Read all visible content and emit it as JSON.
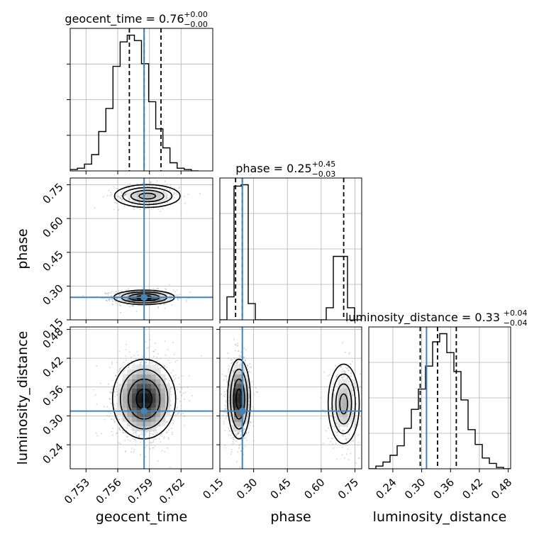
{
  "chart_data": {
    "type": "corner",
    "parameters": [
      "geocent_time",
      "phase",
      "luminosity_distance"
    ],
    "truths": {
      "geocent_time": 0.7585,
      "phase": 0.25,
      "luminosity_distance": 0.31
    },
    "axes": {
      "geocent_time": {
        "range": [
          0.7515,
          0.765
        ],
        "ticks": [
          0.753,
          0.756,
          0.759,
          0.762
        ],
        "tick_labels": [
          "0.753",
          "0.756",
          "0.759",
          "0.762"
        ]
      },
      "phase": {
        "range": [
          0.15,
          0.78
        ],
        "ticks": [
          0.15,
          0.3,
          0.45,
          0.6,
          0.75
        ],
        "tick_labels": [
          "0.15",
          "0.30",
          "0.45",
          "0.60",
          "0.75"
        ]
      },
      "luminosity_distance": {
        "range": [
          0.19,
          0.485
        ],
        "ticks": [
          0.24,
          0.3,
          0.36,
          0.42,
          0.48
        ],
        "tick_labels": [
          "0.24",
          "0.30",
          "0.36",
          "0.42",
          "0.48"
        ]
      }
    },
    "titles": [
      {
        "param": "geocent_time",
        "text": "geocent_time = 0.76",
        "sup": "+0.00",
        "sub": "−0.00"
      },
      {
        "param": "phase",
        "text": "phase = 0.25",
        "sup": "+0.45",
        "sub": "−0.03"
      },
      {
        "param": "luminosity_distance",
        "text": "luminosity_distance = 0.33",
        "sup": "+0.04",
        "sub": "−0.04"
      }
    ],
    "quantiles": {
      "geocent_time": [
        0.7571,
        0.7585,
        0.7601
      ],
      "phase": [
        0.22,
        0.25,
        0.7
      ],
      "luminosity_distance": [
        0.297,
        0.333,
        0.372
      ]
    },
    "histograms": {
      "geocent_time": {
        "edges": [
          0.7515,
          0.75218,
          0.75285,
          0.75353,
          0.7542,
          0.75488,
          0.75555,
          0.75623,
          0.7569,
          0.75758,
          0.75825,
          0.75893,
          0.7596,
          0.76028,
          0.76095,
          0.76163,
          0.7623,
          0.76298,
          0.76365
        ],
        "counts": [
          0.01,
          0.02,
          0.05,
          0.12,
          0.29,
          0.46,
          0.77,
          0.95,
          1.0,
          0.96,
          0.79,
          0.51,
          0.31,
          0.17,
          0.06,
          0.02,
          0.01,
          0.0
        ]
      },
      "phase": {
        "edges": [
          0.15,
          0.1815,
          0.213,
          0.2445,
          0.276,
          0.3075,
          0.339,
          0.3705,
          0.402,
          0.4335,
          0.465,
          0.4965,
          0.528,
          0.5595,
          0.591,
          0.6225,
          0.654,
          0.6855,
          0.717,
          0.7485,
          0.78
        ],
        "counts": [
          0.0,
          0.17,
          0.99,
          1.0,
          0.12,
          0.0,
          0.0,
          0.0,
          0.0,
          0.0,
          0.0,
          0.0,
          0.0,
          0.0,
          0.0,
          0.09,
          0.47,
          0.47,
          0.09,
          0.0
        ]
      },
      "luminosity_distance": {
        "edges": [
          0.19,
          0.2048,
          0.2195,
          0.2343,
          0.249,
          0.2638,
          0.2785,
          0.2933,
          0.308,
          0.3228,
          0.3375,
          0.3523,
          0.367,
          0.3818,
          0.3965,
          0.4113,
          0.426,
          0.4408,
          0.4555,
          0.4703,
          0.485
        ],
        "counts": [
          0.0,
          0.02,
          0.05,
          0.1,
          0.17,
          0.3,
          0.44,
          0.59,
          0.76,
          0.94,
          1.0,
          0.86,
          0.72,
          0.51,
          0.29,
          0.18,
          0.08,
          0.04,
          0.01,
          0.0
        ]
      }
    },
    "modes": {
      "geocent_time|phase": [
        {
          "cx": 0.7585,
          "cy": 0.25,
          "sx": 0.00125,
          "sy": 0.014,
          "w": 0.73
        },
        {
          "cx": 0.7588,
          "cy": 0.7,
          "sx": 0.00135,
          "sy": 0.022,
          "w": 0.27
        }
      ],
      "geocent_time|luminosity_distance": [
        {
          "cx": 0.7585,
          "cy": 0.335,
          "sx": 0.0013,
          "sy": 0.036,
          "w": 1.0
        }
      ],
      "phase|luminosity_distance": [
        {
          "cx": 0.235,
          "cy": 0.335,
          "sx": 0.022,
          "sy": 0.036,
          "w": 0.73
        },
        {
          "cx": 0.7,
          "cy": 0.325,
          "sx": 0.03,
          "sy": 0.036,
          "w": 0.27
        }
      ]
    },
    "contour_levels": 4,
    "grid": true,
    "truth_color": "#4682b4",
    "line_color": "#000000",
    "scatter_color": "#aaaaaa"
  }
}
